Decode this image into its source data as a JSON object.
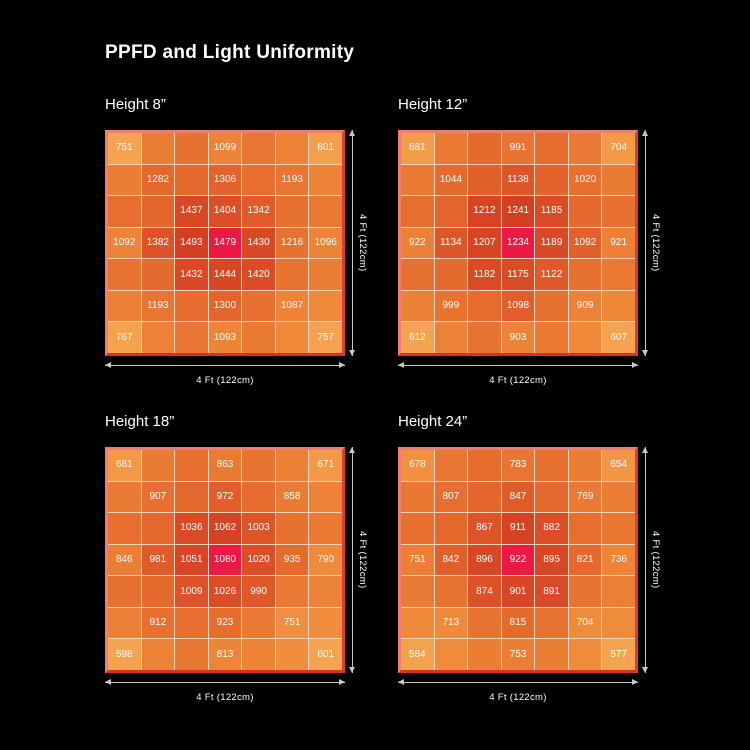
{
  "page": {
    "title": "PPFD and Light Uniformity"
  },
  "colors": {
    "background": "#000000",
    "text": "#ffffff",
    "grid_line": "#e9d5c0",
    "frame_light": "#ee7e70",
    "frame_dark": "#e23c31",
    "dimension_line": "#c9c9c9",
    "center_highlight": "#ec1944",
    "scale_stops": [
      {
        "t": 0.0,
        "color": "#f5a350"
      },
      {
        "t": 0.4,
        "color": "#ef8a3a"
      },
      {
        "t": 0.7,
        "color": "#e56a2d"
      },
      {
        "t": 0.9,
        "color": "#da4b26"
      },
      {
        "t": 1.0,
        "color": "#d43f23"
      }
    ]
  },
  "chart_data": [
    {
      "type": "heatmap",
      "title": "Height 8”",
      "x_label": "4 Ft (122cm)",
      "y_label": "4 Ft (122cm)",
      "grid_size": 7,
      "values": [
        [
          751,
          null,
          null,
          1099,
          null,
          null,
          801
        ],
        [
          null,
          1282,
          null,
          1306,
          null,
          1193,
          null
        ],
        [
          null,
          null,
          1437,
          1404,
          1342,
          null,
          null
        ],
        [
          1092,
          1382,
          1493,
          1479,
          1430,
          1216,
          1096
        ],
        [
          null,
          null,
          1432,
          1444,
          1420,
          null,
          null
        ],
        [
          null,
          1193,
          null,
          1300,
          null,
          1087,
          null
        ],
        [
          767,
          null,
          null,
          1093,
          null,
          null,
          757
        ]
      ]
    },
    {
      "type": "heatmap",
      "title": "Height 12”",
      "x_label": "4 Ft (122cm)",
      "y_label": "4 Ft (122cm)",
      "grid_size": 7,
      "values": [
        [
          681,
          null,
          null,
          991,
          null,
          null,
          704
        ],
        [
          null,
          1044,
          null,
          1138,
          null,
          1020,
          null
        ],
        [
          null,
          null,
          1212,
          1241,
          1185,
          null,
          null
        ],
        [
          922,
          1134,
          1207,
          1234,
          1189,
          1092,
          921
        ],
        [
          null,
          null,
          1182,
          1175,
          1122,
          null,
          null
        ],
        [
          null,
          999,
          null,
          1098,
          null,
          909,
          null
        ],
        [
          612,
          null,
          null,
          903,
          null,
          null,
          607
        ]
      ]
    },
    {
      "type": "heatmap",
      "title": "Height 18”",
      "x_label": "4 Ft (122cm)",
      "y_label": "4 Ft (122cm)",
      "grid_size": 7,
      "values": [
        [
          681,
          null,
          null,
          863,
          null,
          null,
          671
        ],
        [
          null,
          907,
          null,
          972,
          null,
          858,
          null
        ],
        [
          null,
          null,
          1036,
          1062,
          1003,
          null,
          null
        ],
        [
          846,
          981,
          1051,
          1080,
          1020,
          935,
          790
        ],
        [
          null,
          null,
          1009,
          1026,
          990,
          null,
          null
        ],
        [
          null,
          912,
          null,
          923,
          null,
          751,
          null
        ],
        [
          598,
          null,
          null,
          813,
          null,
          null,
          601
        ]
      ]
    },
    {
      "type": "heatmap",
      "title": "Height 24”",
      "x_label": "4 Ft (122cm)",
      "y_label": "4 Ft (122cm)",
      "grid_size": 7,
      "values": [
        [
          678,
          null,
          null,
          783,
          null,
          null,
          654
        ],
        [
          null,
          807,
          null,
          847,
          null,
          769,
          null
        ],
        [
          null,
          null,
          867,
          911,
          882,
          null,
          null
        ],
        [
          751,
          842,
          896,
          922,
          895,
          821,
          736
        ],
        [
          null,
          null,
          874,
          901,
          891,
          null,
          null
        ],
        [
          null,
          713,
          null,
          815,
          null,
          704,
          null
        ],
        [
          584,
          null,
          null,
          753,
          null,
          null,
          577
        ]
      ]
    }
  ]
}
